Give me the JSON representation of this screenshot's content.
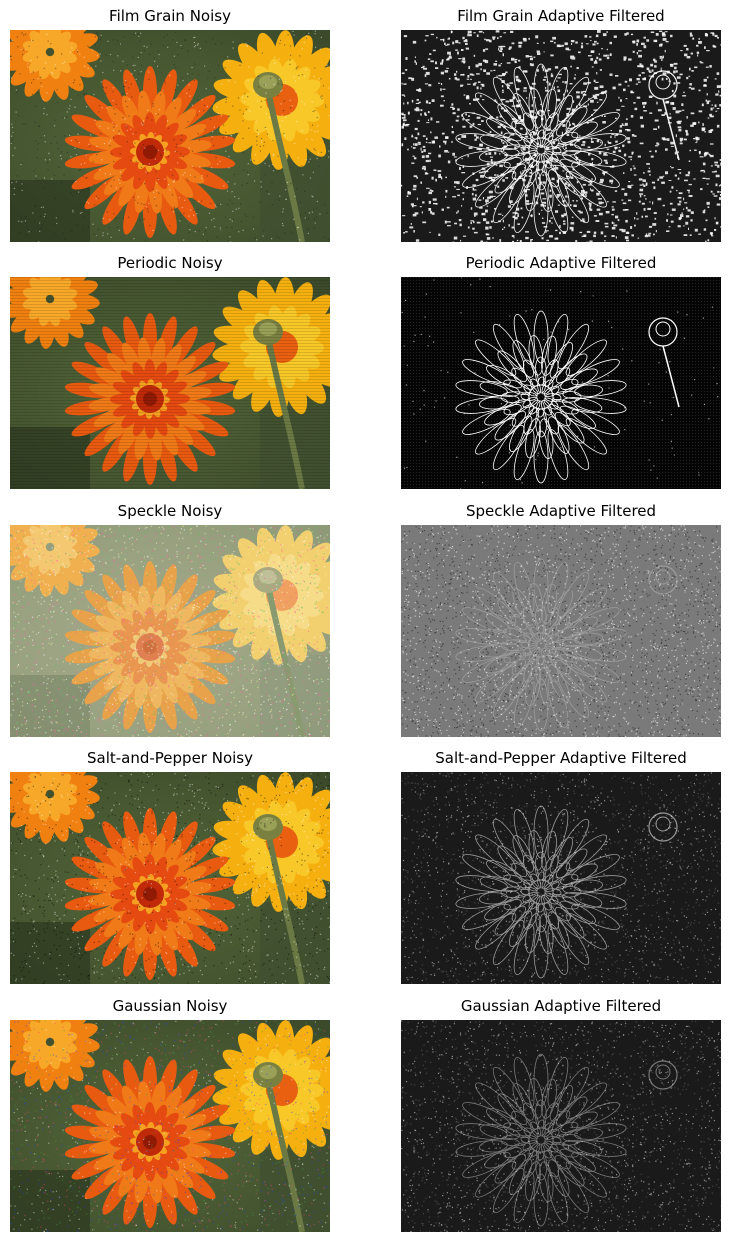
{
  "figure": {
    "panels": [
      {
        "title": "Film Grain Noisy",
        "kind": "noisy",
        "noise": "film-grain"
      },
      {
        "title": "Film Grain Adaptive Filtered",
        "kind": "filtered",
        "noise": "film-grain"
      },
      {
        "title": "Periodic Noisy",
        "kind": "noisy",
        "noise": "periodic"
      },
      {
        "title": "Periodic Adaptive Filtered",
        "kind": "filtered",
        "noise": "periodic"
      },
      {
        "title": "Speckle Noisy",
        "kind": "noisy",
        "noise": "speckle"
      },
      {
        "title": "Speckle Adaptive Filtered",
        "kind": "filtered",
        "noise": "speckle"
      },
      {
        "title": "Salt-and-Pepper Noisy",
        "kind": "noisy",
        "noise": "salt-and-pepper"
      },
      {
        "title": "Salt-and-Pepper Adaptive Filtered",
        "kind": "filtered",
        "noise": "salt-and-pepper"
      },
      {
        "title": "Gaussian Noisy",
        "kind": "noisy",
        "noise": "gaussian"
      },
      {
        "title": "Gaussian Adaptive Filtered",
        "kind": "filtered",
        "noise": "gaussian"
      }
    ]
  }
}
